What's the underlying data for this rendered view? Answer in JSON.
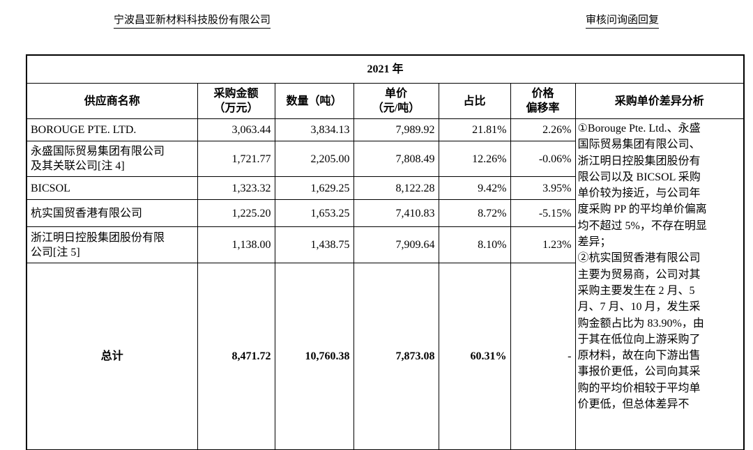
{
  "header": {
    "company": "宁波昌亚新材料科技股份有限公司",
    "doc_type": "审核问询函回复"
  },
  "table": {
    "year": "2021 年",
    "columns": {
      "supplier": "供应商名称",
      "amount": [
        "采购金额",
        "（万元）"
      ],
      "quantity": "数量（吨）",
      "unit_price": [
        "单价",
        "（元/吨）"
      ],
      "share": "占比",
      "deviation": [
        "价格",
        "偏移率"
      ],
      "analysis": "采购单价差异分析"
    },
    "rows": [
      {
        "name": [
          "BOROUGE PTE. LTD."
        ],
        "amount": "3,063.44",
        "quantity": "3,834.13",
        "price": "7,989.92",
        "share": "21.81%",
        "deviation": "2.26%"
      },
      {
        "name": [
          "永盛国际贸易集团有限公司",
          "及其关联公司[注 4]"
        ],
        "amount": "1,721.77",
        "quantity": "2,205.00",
        "price": "7,808.49",
        "share": "12.26%",
        "deviation": "-0.06%"
      },
      {
        "name": [
          "BICSOL"
        ],
        "amount": "1,323.32",
        "quantity": "1,629.25",
        "price": "8,122.28",
        "share": "9.42%",
        "deviation": "3.95%"
      },
      {
        "name": [
          "杭实国贸香港有限公司"
        ],
        "amount": "1,225.20",
        "quantity": "1,653.25",
        "price": "7,410.83",
        "share": "8.72%",
        "deviation": "-5.15%"
      },
      {
        "name": [
          "浙江明日控股集团股份有限",
          "公司[注 5]"
        ],
        "amount": "1,138.00",
        "quantity": "1,438.75",
        "price": "7,909.64",
        "share": "8.10%",
        "deviation": "1.23%"
      }
    ],
    "total": {
      "label": "总计",
      "amount": "8,471.72",
      "quantity": "10,760.38",
      "price": "7,873.08",
      "share": "60.31%",
      "deviation": "-"
    },
    "analysis_lines": [
      "①Borouge Pte. Ltd.、永盛",
      "国际贸易集团有限公司、",
      "浙江明日控股集团股份有",
      "限公司以及 BICSOL 采购",
      "单价较为接近，与公司年",
      "度采购 PP 的平均单价偏离",
      "均不超过 5%，不存在明显",
      "差异；",
      "②杭实国贸香港有限公司",
      "主要为贸易商，公司对其",
      "采购主要发生在 2 月、5",
      "月、7 月、10 月，发生采",
      "购金额占比为 83.90%，由",
      "于其在低位向上游采购了",
      "原材料，故在向下游出售",
      "事报价更低，公司向其采",
      "购的平均价相较于平均单",
      "价更低，但总体差异不"
    ]
  }
}
